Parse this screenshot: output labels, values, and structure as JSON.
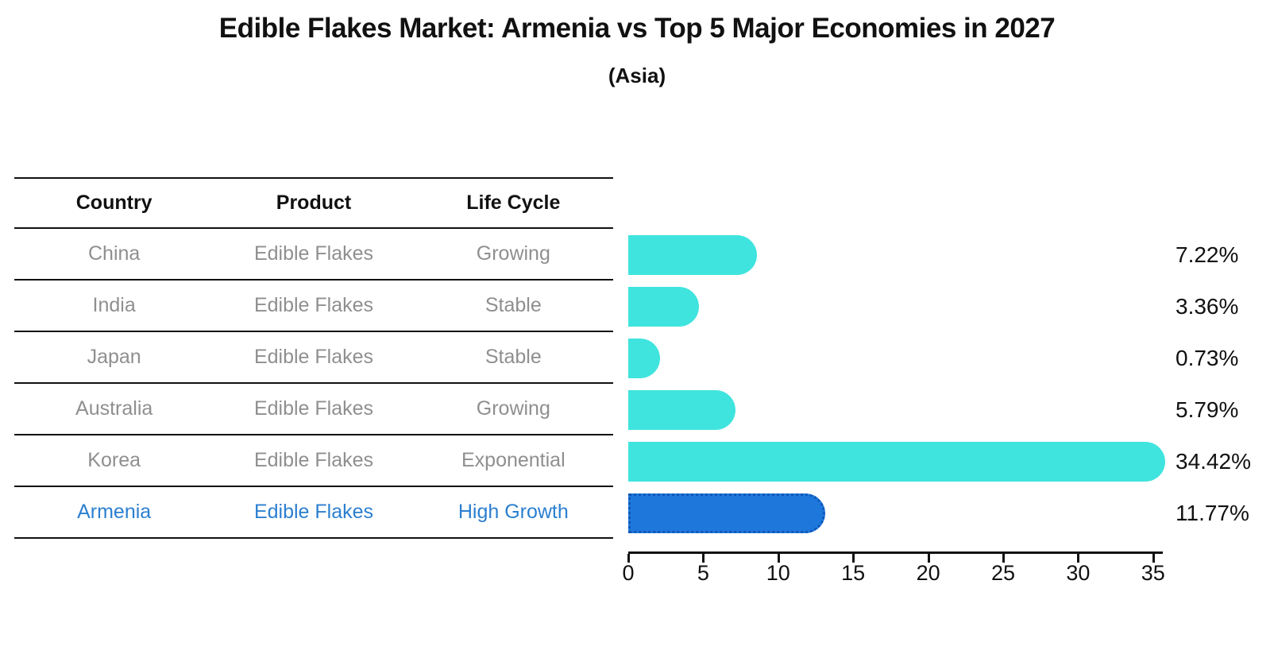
{
  "title": "Edible Flakes Market: Armenia vs Top 5 Major Economies in 2027",
  "subtitle": "(Asia)",
  "table": {
    "headers": [
      "Country",
      "Product",
      "Life Cycle"
    ],
    "rows": [
      {
        "country": "China",
        "product": "Edible Flakes",
        "life_cycle": "Growing",
        "highlight": false
      },
      {
        "country": "India",
        "product": "Edible Flakes",
        "life_cycle": "Stable",
        "highlight": false
      },
      {
        "country": "Japan",
        "product": "Edible Flakes",
        "life_cycle": "Stable",
        "highlight": false
      },
      {
        "country": "Australia",
        "product": "Edible Flakes",
        "life_cycle": "Growing",
        "highlight": false
      },
      {
        "country": "Korea",
        "product": "Edible Flakes",
        "life_cycle": "Exponential",
        "highlight": false
      },
      {
        "country": "Armenia",
        "product": "Edible Flakes",
        "life_cycle": "High Growth",
        "highlight": true
      }
    ]
  },
  "chart_data": {
    "type": "bar",
    "orientation": "horizontal",
    "title": "Edible Flakes Market: Armenia vs Top 5 Major Economies in 2027",
    "subtitle": "(Asia)",
    "categories": [
      "China",
      "India",
      "Japan",
      "Australia",
      "Korea",
      "Armenia"
    ],
    "values": [
      7.22,
      3.36,
      0.73,
      5.79,
      34.42,
      11.77
    ],
    "value_labels": [
      "7.22%",
      "3.36%",
      "0.73%",
      "5.79%",
      "34.42%",
      "11.77%"
    ],
    "highlight_category": "Armenia",
    "xlabel": "",
    "ylabel": "",
    "xticks": [
      0,
      5,
      10,
      15,
      20,
      25,
      30,
      35
    ],
    "xlim": [
      0,
      35.6
    ],
    "grid": false,
    "legend": false
  },
  "colors": {
    "bar_default": "#40E4DE",
    "bar_highlight": "#1E78DB",
    "bar_highlight_border": "#1057B8",
    "table_text": "#8F8F8F",
    "highlight_text": "#2B7FD0",
    "heading_text": "#111111"
  }
}
